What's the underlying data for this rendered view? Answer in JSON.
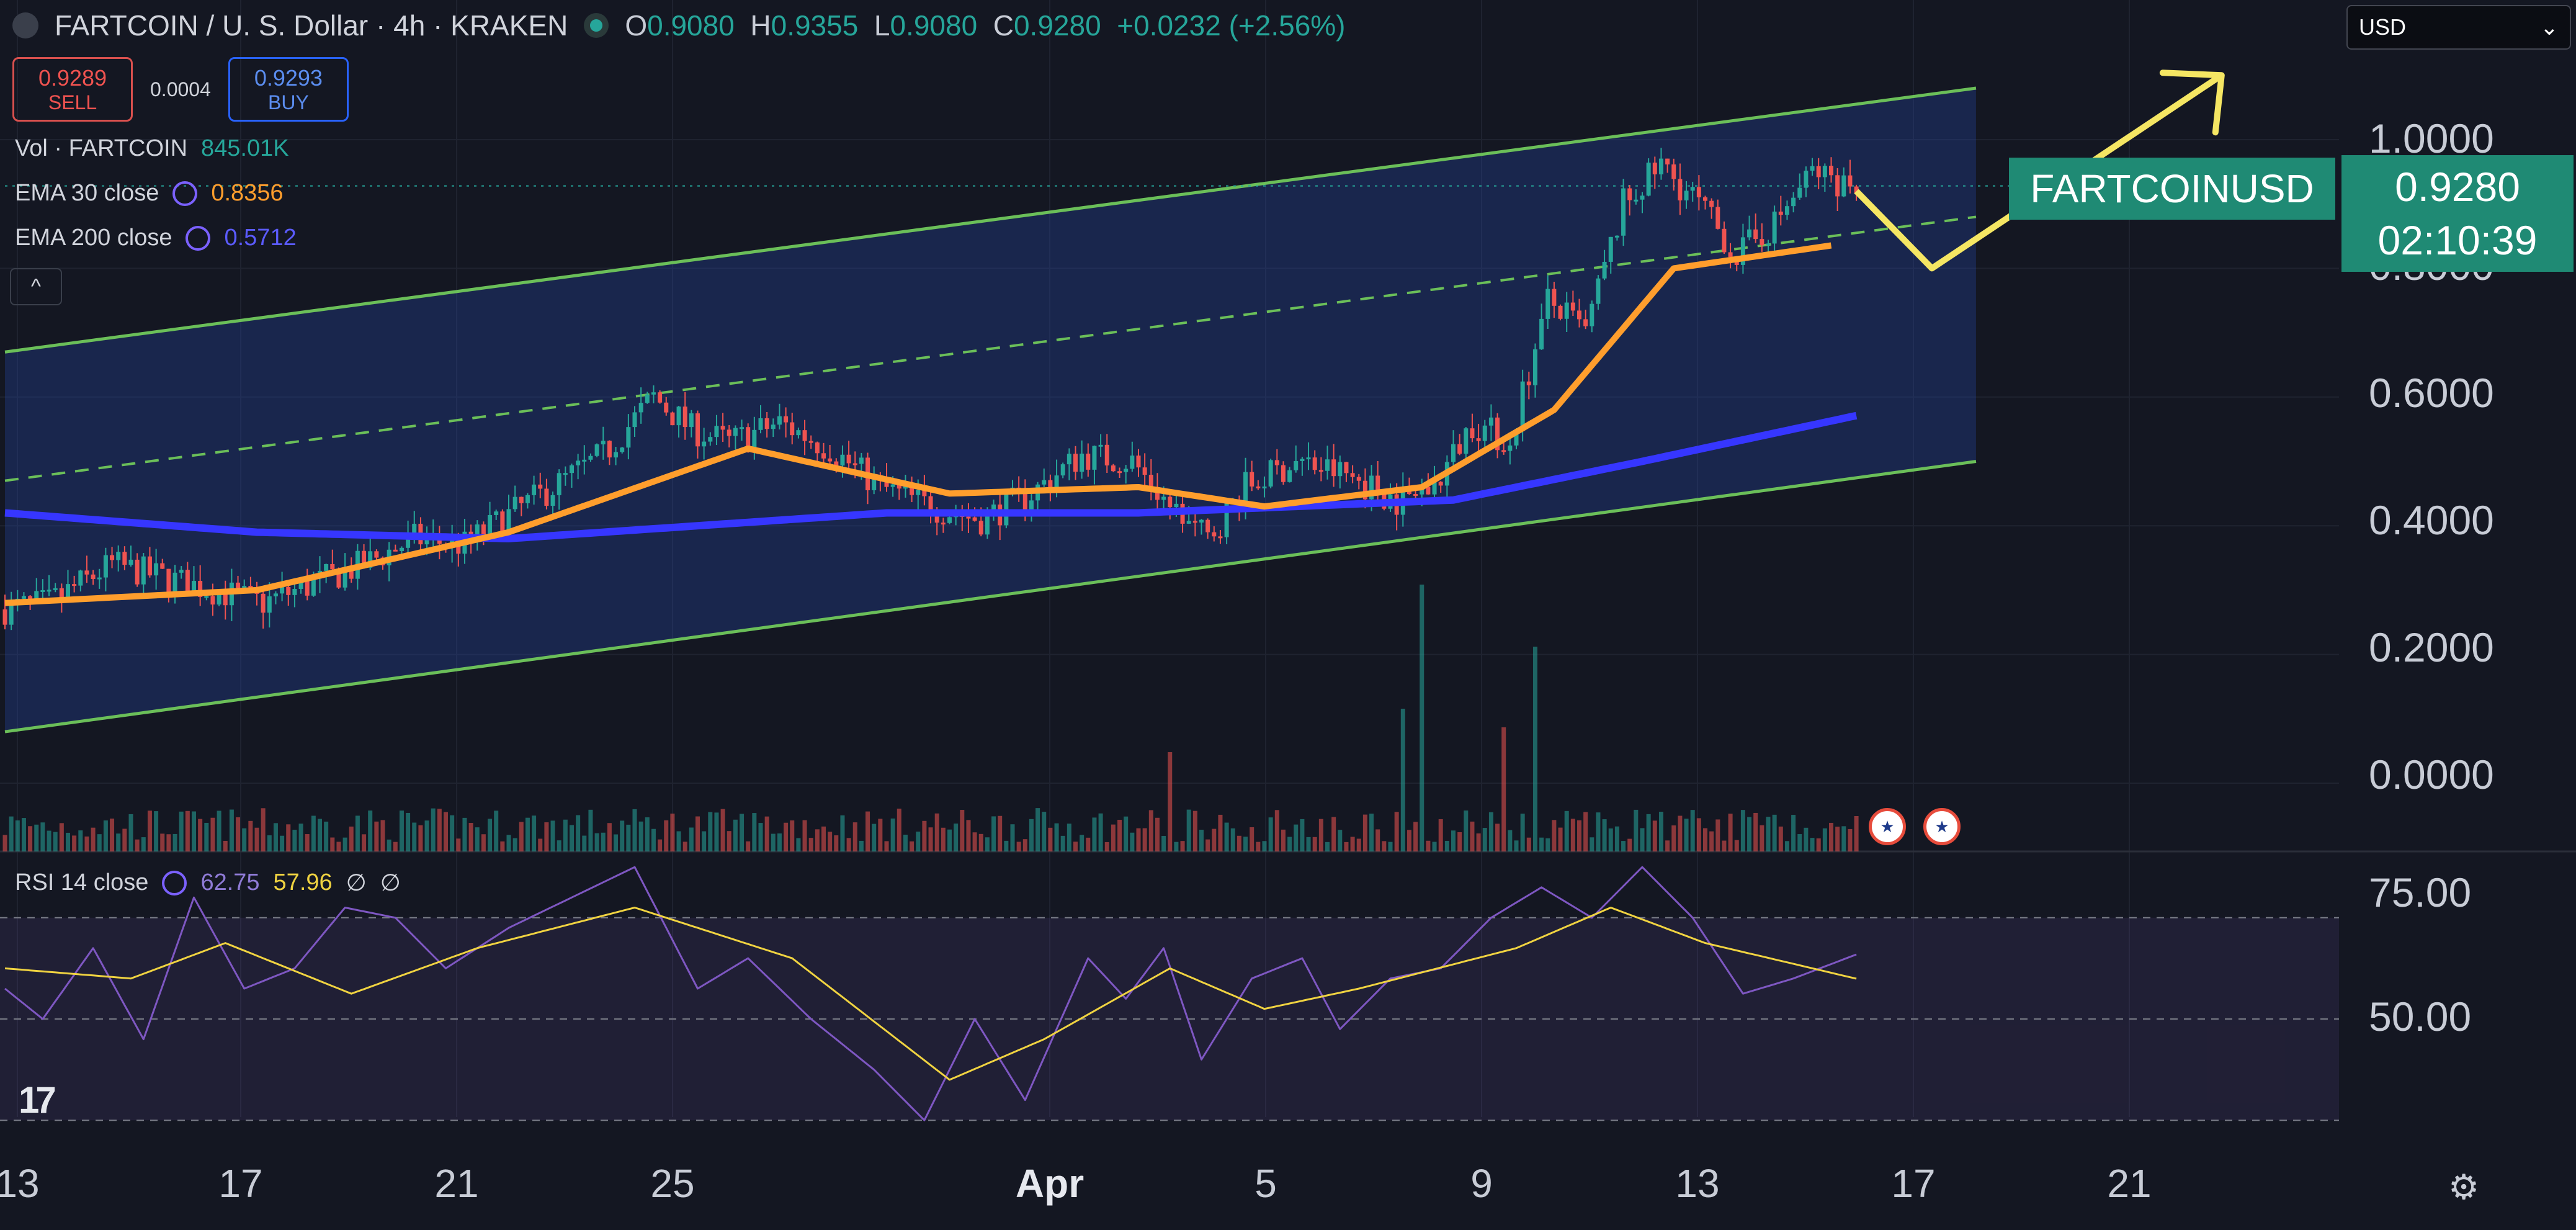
{
  "header": {
    "title": "FARTCOIN / U. S. Dollar · 4h · KRAKEN",
    "ohlc": {
      "o_label": "O",
      "o": "0.9080",
      "h_label": "H",
      "h": "0.9355",
      "l_label": "L",
      "l": "0.9080",
      "c_label": "C",
      "c": "0.9280",
      "change": "+0.0232 (+2.56%)"
    }
  },
  "trade": {
    "sell_price": "0.9289",
    "sell_label": "SELL",
    "spread": "0.0004",
    "buy_price": "0.9293",
    "buy_label": "BUY"
  },
  "indicators": {
    "vol_label": "Vol · FARTCOIN",
    "vol_value": "845.01K",
    "ema30_label": "EMA 30 close",
    "ema30_value": "0.8356",
    "ema200_label": "EMA 200 close",
    "ema200_value": "0.5712",
    "rsi_label": "RSI 14 close",
    "rsi_value": "62.75",
    "rsi_ma_value": "57.96",
    "rsi_extra1": "∅",
    "rsi_extra2": "∅"
  },
  "currency_select": {
    "value": "USD"
  },
  "price_tags": {
    "symbol": "FARTCOINUSD",
    "last_price": "0.9280",
    "countdown": "02:10:39"
  },
  "colors": {
    "bg": "#141722",
    "up": "#26a69a",
    "down": "#ef5350",
    "ema30": "#ff9e2d",
    "ema200": "#3636ff",
    "channel": "#6bbf59",
    "arrow": "#f5e663",
    "rsi": "#7e57c2",
    "rsi_ma": "#f0d341"
  },
  "icons": {
    "logo": "tradingview-logo",
    "settings": "settings-gear-icon",
    "flags": "us-flag-icon"
  },
  "chart_data": {
    "type": "candlestick",
    "timeframe": "4h",
    "x_ticks": [
      "13",
      "17",
      "21",
      "25",
      "Apr",
      "5",
      "9",
      "13",
      "17",
      "21"
    ],
    "y_ticks": [
      "0.0000",
      "0.2000",
      "0.4000",
      "0.6000",
      "0.8000",
      "1.0000"
    ],
    "ylim": [
      -0.1,
      1.1
    ],
    "rsi_ticks": [
      "50.00",
      "75.00"
    ],
    "rsi_ylim": [
      22,
      81
    ],
    "rsi_levels": [
      30,
      50,
      70
    ],
    "price_anchors": [
      [
        0,
        0.27
      ],
      [
        8,
        0.28
      ],
      [
        18,
        0.34
      ],
      [
        26,
        0.32
      ],
      [
        34,
        0.3
      ],
      [
        42,
        0.28
      ],
      [
        50,
        0.31
      ],
      [
        58,
        0.34
      ],
      [
        66,
        0.38
      ],
      [
        74,
        0.37
      ],
      [
        80,
        0.41
      ],
      [
        88,
        0.46
      ],
      [
        96,
        0.51
      ],
      [
        104,
        0.6
      ],
      [
        110,
        0.55
      ],
      [
        116,
        0.53
      ],
      [
        124,
        0.56
      ],
      [
        132,
        0.52
      ],
      [
        140,
        0.46
      ],
      [
        148,
        0.43
      ],
      [
        156,
        0.41
      ],
      [
        164,
        0.45
      ],
      [
        172,
        0.51
      ],
      [
        180,
        0.5
      ],
      [
        186,
        0.43
      ],
      [
        192,
        0.38
      ],
      [
        198,
        0.46
      ],
      [
        206,
        0.5
      ],
      [
        214,
        0.48
      ],
      [
        222,
        0.44
      ],
      [
        228,
        0.46
      ],
      [
        234,
        0.56
      ],
      [
        240,
        0.53
      ],
      [
        246,
        0.75
      ],
      [
        252,
        0.7
      ],
      [
        258,
        0.9
      ],
      [
        264,
        0.96
      ],
      [
        270,
        0.9
      ],
      [
        276,
        0.82
      ],
      [
        282,
        0.87
      ],
      [
        288,
        0.95
      ],
      [
        294,
        0.93
      ]
    ],
    "volume_spikes": [
      [
        185,
        0.16
      ],
      [
        222,
        0.23
      ],
      [
        225,
        0.43
      ],
      [
        238,
        0.2
      ],
      [
        243,
        0.33
      ]
    ],
    "ema30_anchors": [
      [
        0,
        0.28
      ],
      [
        40,
        0.3
      ],
      [
        80,
        0.39
      ],
      [
        118,
        0.52
      ],
      [
        150,
        0.45
      ],
      [
        180,
        0.46
      ],
      [
        200,
        0.43
      ],
      [
        225,
        0.46
      ],
      [
        246,
        0.58
      ],
      [
        265,
        0.8
      ],
      [
        290,
        0.8356
      ]
    ],
    "ema200_anchors": [
      [
        0,
        0.42
      ],
      [
        40,
        0.39
      ],
      [
        80,
        0.38
      ],
      [
        140,
        0.42
      ],
      [
        180,
        0.42
      ],
      [
        230,
        0.44
      ],
      [
        260,
        0.5
      ],
      [
        294,
        0.5712
      ]
    ],
    "channel": {
      "x0": 0,
      "x1": 313,
      "upper": [
        0.67,
        1.08
      ],
      "mid": [
        0.47,
        0.88
      ],
      "lower": [
        0.08,
        0.5
      ]
    },
    "arrow_path": [
      [
        294,
        0.92
      ],
      [
        306,
        0.8
      ],
      [
        352,
        1.1
      ]
    ],
    "rsi_anchors": [
      [
        0,
        56
      ],
      [
        6,
        50
      ],
      [
        14,
        64
      ],
      [
        22,
        46
      ],
      [
        30,
        74
      ],
      [
        38,
        56
      ],
      [
        46,
        60
      ],
      [
        54,
        72
      ],
      [
        62,
        70
      ],
      [
        70,
        60
      ],
      [
        80,
        68
      ],
      [
        90,
        74
      ],
      [
        100,
        80
      ],
      [
        110,
        56
      ],
      [
        118,
        62
      ],
      [
        128,
        50
      ],
      [
        138,
        40
      ],
      [
        146,
        30
      ],
      [
        154,
        50
      ],
      [
        162,
        34
      ],
      [
        172,
        62
      ],
      [
        178,
        54
      ],
      [
        184,
        64
      ],
      [
        190,
        42
      ],
      [
        198,
        58
      ],
      [
        206,
        62
      ],
      [
        212,
        48
      ],
      [
        220,
        58
      ],
      [
        228,
        60
      ],
      [
        236,
        70
      ],
      [
        244,
        76
      ],
      [
        252,
        70
      ],
      [
        260,
        80
      ],
      [
        268,
        70
      ],
      [
        276,
        55
      ],
      [
        284,
        58
      ],
      [
        294,
        62.75
      ]
    ],
    "rsi_ma_anchors": [
      [
        0,
        60
      ],
      [
        20,
        58
      ],
      [
        35,
        65
      ],
      [
        55,
        55
      ],
      [
        75,
        64
      ],
      [
        100,
        72
      ],
      [
        125,
        62
      ],
      [
        150,
        38
      ],
      [
        165,
        46
      ],
      [
        185,
        60
      ],
      [
        200,
        52
      ],
      [
        215,
        56
      ],
      [
        240,
        64
      ],
      [
        255,
        72
      ],
      [
        270,
        65
      ],
      [
        294,
        57.96
      ]
    ]
  }
}
